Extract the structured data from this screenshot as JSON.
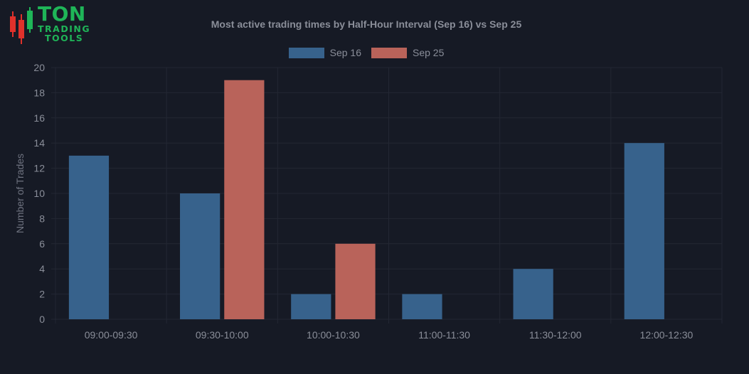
{
  "logo": {
    "word": "TON",
    "line1": "TRADING",
    "line2": "TOOLS"
  },
  "colors": {
    "background": "#161a25",
    "grid": "#232733",
    "text": "#8a8e99",
    "logo_green": "#1fb558",
    "candle_red": "#e0312b"
  },
  "chart_data": {
    "type": "bar",
    "title": "Most active trading times by Half-Hour Interval (Sep 16) vs Sep 25",
    "xlabel": "",
    "ylabel": "Number of Trades",
    "categories": [
      "09:00-09:30",
      "09:30-10:00",
      "10:00-10:30",
      "11:00-11:30",
      "11:30-12:00",
      "12:00-12:30"
    ],
    "series": [
      {
        "name": "Sep 16",
        "color": "#37628c",
        "values": [
          13,
          10,
          2,
          2,
          4,
          14
        ]
      },
      {
        "name": "Sep 25",
        "color": "#b9635a",
        "values": [
          0,
          19,
          6,
          0,
          0,
          0
        ]
      }
    ],
    "ylim": [
      0,
      20
    ],
    "yticks": [
      0,
      2,
      4,
      6,
      8,
      10,
      12,
      14,
      16,
      18,
      20
    ],
    "grid": true,
    "legend_position": "top-center"
  }
}
